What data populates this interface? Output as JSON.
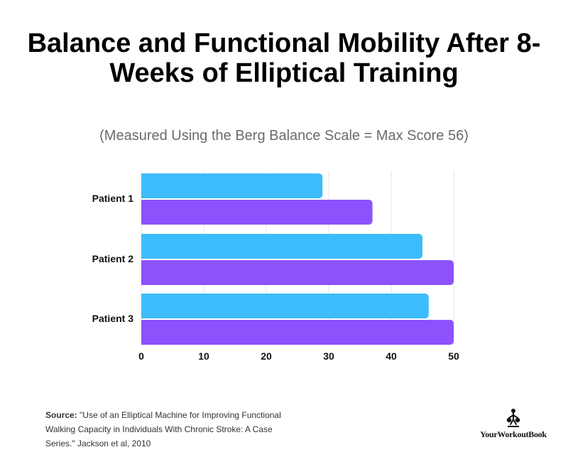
{
  "chart_data": {
    "type": "bar",
    "orientation": "horizontal",
    "title": "Balance and Functional Mobility After 8-Weeks of Elliptical Training",
    "subtitle": "(Measured Using the Berg Balance Scale = Max Score 56)",
    "categories": [
      "Patient 1",
      "Patient 2",
      "Patient 3"
    ],
    "series": [
      {
        "color": "#3dbcfb",
        "values": [
          29,
          45,
          46
        ]
      },
      {
        "color": "#8c53fd",
        "values": [
          37,
          50,
          50
        ]
      }
    ],
    "xlim": [
      0,
      50
    ],
    "xticks": [
      0,
      10,
      20,
      30,
      40,
      50
    ],
    "grid": true
  },
  "footer": {
    "source_label": "Source:",
    "source_text": "\"Use of an Elliptical Machine for Improving Functional Walking Capacity in Individuals With Chronic Stroke: A Case Series.\" Jackson et al, 2010"
  },
  "brand": {
    "name": "YourWorkoutBook",
    "logo_icon": "kettlebell-figure-icon"
  }
}
